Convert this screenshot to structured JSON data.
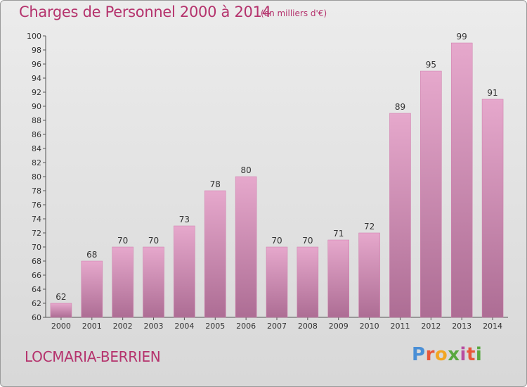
{
  "header": {
    "title": "Charges de Personnel 2000 à 2014",
    "subtitle": "(en milliers d'€)"
  },
  "footer": {
    "commune": "LOCMARIA-BERRIEN",
    "logo_text": "Proxiti",
    "logo_colors": [
      "#4a8fd6",
      "#e8563a",
      "#f2a623",
      "#58a83f",
      "#b84ca0",
      "#e8563a",
      "#58a83f"
    ]
  },
  "colors": {
    "accent": "#b5336d",
    "bar_top": "#e6a8cc",
    "bar_bottom": "#ad6d94",
    "bar_edge": "#d07bab"
  },
  "chart_data": {
    "type": "bar",
    "title": "Charges de Personnel 2000 à 2014",
    "subtitle": "(en milliers d'€)",
    "xlabel": "",
    "ylabel": "",
    "categories": [
      "2000",
      "2001",
      "2002",
      "2003",
      "2004",
      "2005",
      "2006",
      "2007",
      "2008",
      "2009",
      "2010",
      "2011",
      "2012",
      "2013",
      "2014"
    ],
    "values": [
      62,
      68,
      70,
      70,
      73,
      78,
      80,
      70,
      70,
      71,
      72,
      89,
      95,
      99,
      91
    ],
    "ylim": [
      60,
      100
    ],
    "yticks": [
      60,
      62,
      64,
      66,
      68,
      70,
      72,
      74,
      76,
      78,
      80,
      82,
      84,
      86,
      88,
      90,
      92,
      94,
      96,
      98,
      100
    ],
    "grid": false,
    "legend": "none"
  }
}
